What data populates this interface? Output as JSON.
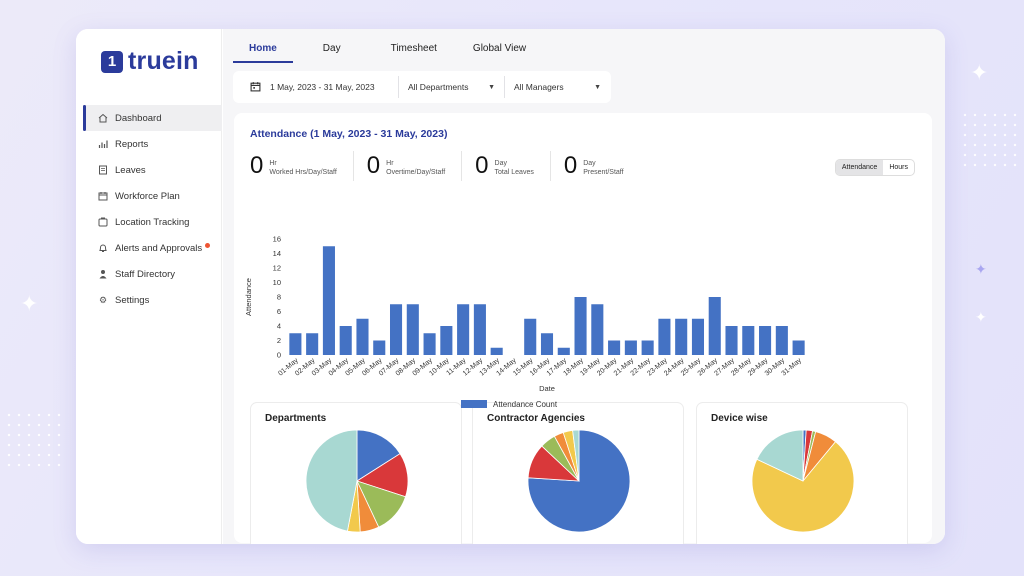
{
  "brand": {
    "mark": "1",
    "name": "truein"
  },
  "sidebar": {
    "items": [
      {
        "label": "Dashboard",
        "icon": "home-icon",
        "active": true
      },
      {
        "label": "Reports",
        "icon": "bar-chart-icon"
      },
      {
        "label": "Leaves",
        "icon": "document-icon"
      },
      {
        "label": "Workforce Plan",
        "icon": "calendar-icon"
      },
      {
        "label": "Location Tracking",
        "icon": "location-icon"
      },
      {
        "label": "Alerts and Approvals",
        "icon": "bell-icon",
        "badge": true
      },
      {
        "label": "Staff Directory",
        "icon": "user-icon"
      },
      {
        "label": "Settings",
        "icon": "gear-icon"
      }
    ]
  },
  "tabs": [
    "Home",
    "Day",
    "Timesheet",
    "Global View"
  ],
  "filters": {
    "date_range": "1 May, 2023 - 31 May, 2023",
    "department": "All Departments",
    "manager": "All Managers"
  },
  "attendance": {
    "title": "Attendance (1 May, 2023 - 31 May, 2023)",
    "stats": [
      {
        "value": "0",
        "unit": "Hr",
        "label": "Worked Hrs/Day/Staff"
      },
      {
        "value": "0",
        "unit": "Hr",
        "label": "Overtime/Day/Staff"
      },
      {
        "value": "0",
        "unit": "Day",
        "label": "Total Leaves"
      },
      {
        "value": "0",
        "unit": "Day",
        "label": "Present/Staff"
      }
    ],
    "toggle": {
      "left": "Attendance",
      "right": "Hours",
      "selected": "Attendance"
    }
  },
  "chart_data": [
    {
      "type": "bar",
      "xlabel": "Date",
      "ylabel": "Attendance",
      "ylim": [
        0,
        16
      ],
      "yticks": [
        0,
        2,
        4,
        6,
        8,
        10,
        12,
        14,
        16
      ],
      "legend": "bottom",
      "color": "#4472c4",
      "series": [
        {
          "name": "Attendance Count"
        }
      ],
      "categories": [
        "01-May",
        "02-May",
        "03-May",
        "04-May",
        "05-May",
        "06-May",
        "07-May",
        "08-May",
        "09-May",
        "10-May",
        "11-May",
        "12-May",
        "13-May",
        "14-May",
        "15-May",
        "16-May",
        "17-May",
        "18-May",
        "19-May",
        "20-May",
        "21-May",
        "22-May",
        "23-May",
        "24-May",
        "25-May",
        "26-May",
        "27-May",
        "28-May",
        "29-May",
        "30-May",
        "31-May"
      ],
      "values": [
        3,
        3,
        15,
        4,
        5,
        2,
        7,
        7,
        3,
        4,
        7,
        7,
        1,
        0,
        5,
        3,
        1,
        8,
        7,
        2,
        2,
        2,
        5,
        5,
        5,
        8,
        4,
        4,
        4,
        4,
        2
      ]
    },
    {
      "type": "pie",
      "title": "Departments",
      "values": [
        16,
        14,
        13,
        6,
        4,
        47
      ],
      "colors": [
        "#4472c4",
        "#d9383a",
        "#9bbb59",
        "#f08c3a",
        "#f2c94c",
        "#a8d8d2"
      ]
    },
    {
      "type": "pie",
      "title": "Contractor Agencies",
      "values": [
        76,
        11,
        5,
        3,
        3,
        2
      ],
      "colors": [
        "#4472c4",
        "#d9383a",
        "#9bbb59",
        "#f08c3a",
        "#f2c94c",
        "#a8d8d2"
      ]
    },
    {
      "type": "pie",
      "title": "Device wise",
      "values": [
        1,
        2,
        1,
        7,
        71,
        18
      ],
      "colors": [
        "#4472c4",
        "#d9383a",
        "#9bbb59",
        "#f08c3a",
        "#f2c94c",
        "#a8d8d2"
      ]
    }
  ]
}
